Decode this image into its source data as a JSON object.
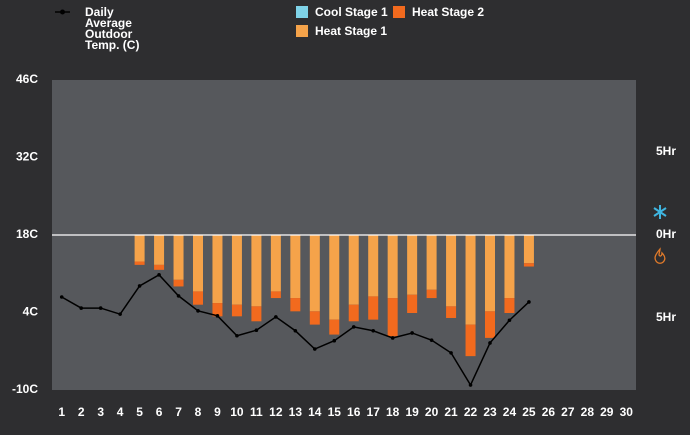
{
  "chart_data": {
    "type": "bar-line",
    "categories": [
      "1",
      "2",
      "3",
      "4",
      "5",
      "6",
      "7",
      "8",
      "9",
      "10",
      "11",
      "12",
      "13",
      "14",
      "15",
      "16",
      "17",
      "18",
      "19",
      "20",
      "21",
      "22",
      "23",
      "24",
      "25",
      "26",
      "27",
      "28",
      "29",
      "30"
    ],
    "series": [
      {
        "name": "Daily Average Outdoor Temp. (C)",
        "type": "line",
        "axis": "y",
        "color": "#000000",
        "values": [
          6.8,
          4.8,
          4.8,
          3.7,
          8.8,
          10.8,
          7.0,
          4.3,
          3.4,
          -0.2,
          0.8,
          3.2,
          0.7,
          -2.6,
          -1.1,
          1.4,
          0.7,
          -0.6,
          0.3,
          -1.0,
          -3.3,
          -9.1,
          -1.5,
          2.6,
          5.9,
          null,
          null,
          null,
          null,
          null
        ]
      },
      {
        "name": "Cool Stage 1",
        "type": "bar",
        "axis": "y2",
        "color": "#7fd3e8",
        "values": [
          null,
          null,
          null,
          null,
          null,
          null,
          null,
          null,
          null,
          null,
          null,
          null,
          null,
          null,
          null,
          null,
          null,
          null,
          null,
          null,
          null,
          null,
          null,
          null,
          null,
          null,
          null,
          null,
          null,
          null
        ]
      },
      {
        "name": "Heat Stage 1",
        "type": "bar",
        "axis": "y2",
        "color": "#f5a34a",
        "values": [
          null,
          null,
          null,
          null,
          -1.6,
          -1.8,
          -2.7,
          -3.4,
          -4.1,
          -4.2,
          -4.3,
          -3.4,
          -3.8,
          -4.6,
          -5.1,
          -4.2,
          -3.7,
          -3.8,
          -3.6,
          -3.3,
          -4.3,
          -5.4,
          -4.6,
          -3.8,
          -1.7,
          null,
          null,
          null,
          null,
          null
        ]
      },
      {
        "name": "Heat Stage 2",
        "type": "bar",
        "axis": "y2",
        "color": "#f26a1e",
        "values": [
          null,
          null,
          null,
          null,
          -0.2,
          -0.3,
          -0.4,
          -0.8,
          -0.8,
          -0.7,
          -0.9,
          -0.4,
          -0.8,
          -0.8,
          -0.9,
          -1.0,
          -1.4,
          -2.3,
          -1.1,
          -0.5,
          -0.7,
          -1.9,
          -1.6,
          -0.9,
          -0.2,
          null,
          null,
          null,
          null,
          null
        ]
      }
    ],
    "ylim": [
      -10,
      46
    ],
    "yticks": [
      {
        "value": -10,
        "label": "-10C"
      },
      {
        "value": 4,
        "label": "4C"
      },
      {
        "value": 18,
        "label": "18C"
      },
      {
        "value": 32,
        "label": "32C"
      },
      {
        "value": 46,
        "label": "46C"
      }
    ],
    "y2lim": [
      -9.34,
      9.34
    ],
    "y2ticks": [
      {
        "value": 5,
        "label": "5Hr"
      },
      {
        "value": 0,
        "label": "0Hr"
      },
      {
        "value": -5,
        "label": "5Hr"
      }
    ]
  }
}
